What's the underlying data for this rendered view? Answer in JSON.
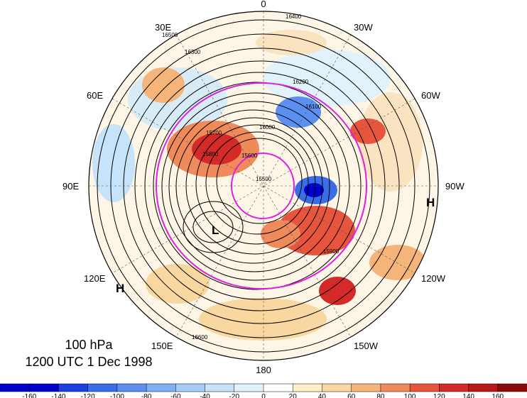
{
  "title": {
    "level": "100 hPa",
    "time": "1200 UTC 1 Dec 1998"
  },
  "longitude_labels": {
    "top": "0",
    "ne": "30W",
    "ene": "60W",
    "east": "90W",
    "ese": "120W",
    "se": "150W",
    "bottom": "180",
    "sw": "150E",
    "wsw": "120E",
    "west": "90E",
    "wnw": "60E",
    "nw": "30E"
  },
  "pressure_centers": [
    {
      "label": "L",
      "type": "low"
    },
    {
      "label": "H",
      "type": "high"
    },
    {
      "label": "H",
      "type": "high"
    }
  ],
  "contour_labels": [
    "16400",
    "16500",
    "16300",
    "16200",
    "16100",
    "16000",
    "15900",
    "15800",
    "15700",
    "15600",
    "15500",
    "16600"
  ],
  "colorbar": {
    "ticks": [
      "-160",
      "-140",
      "-120",
      "-100",
      "-80",
      "-60",
      "-40",
      "-20",
      "0",
      "20",
      "40",
      "60",
      "80",
      "100",
      "120",
      "140",
      "160"
    ],
    "colors": [
      "#0000cc",
      "#1e3fe0",
      "#3a6ee8",
      "#5b8ff0",
      "#7fb0f5",
      "#a5cdf7",
      "#c6e3f9",
      "#e2f2fb",
      "#ffffff",
      "#fdf0c8",
      "#f9d7a0",
      "#f5b47a",
      "#ef8a5a",
      "#e8553e",
      "#d42a2a",
      "#b81a1a",
      "#8c0a0a"
    ]
  },
  "colors": {
    "isotherm_ring": "#e020e0",
    "contour": "#000000"
  }
}
